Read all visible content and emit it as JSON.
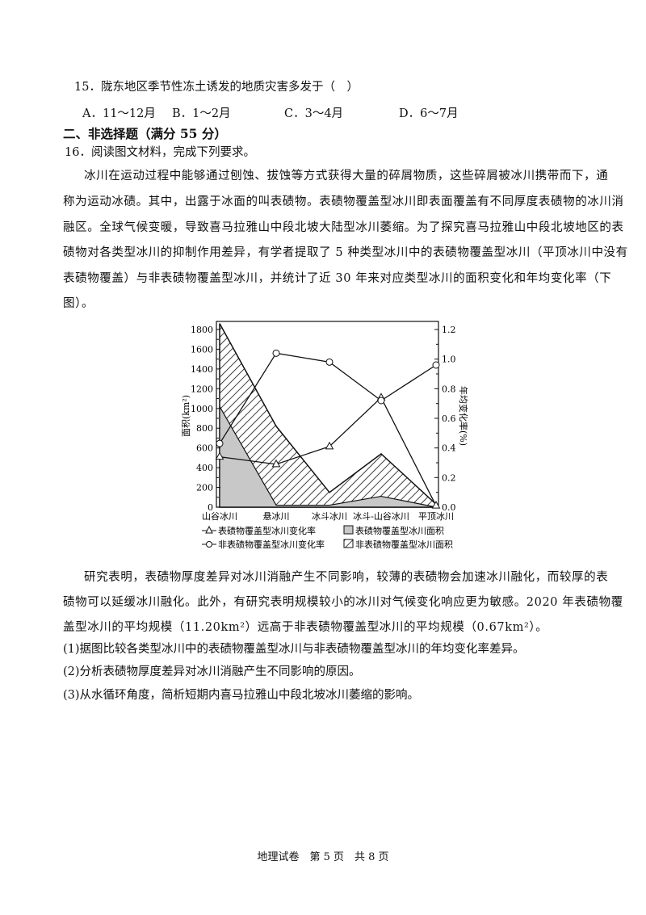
{
  "q15": {
    "stem": "15．陇东地区季节性冻土诱发的地质灾害多发于（　）",
    "options": [
      "A．11～12月",
      "B．1～2月",
      "C．3～4月",
      "D．6～7月"
    ]
  },
  "section2": {
    "title": "二、非选择题（满分 55 分）"
  },
  "q16": {
    "intro": "16．阅读图文材料，完成下列要求。",
    "para1_lines": [
      "冰川在运动过程中能够通过刨蚀、拔蚀等方式获得大量的碎屑物质，这些碎屑被冰川携带而下，通",
      "称为运动冰碛。其中，出露于冰面的叫表碛物。表碛物覆盖型冰川即表面覆盖有不同厚度表碛物的冰川消",
      "融区。全球气候变暖，导致喜马拉雅山中段北坡大陆型冰川萎缩。为了探究喜马拉雅山中段北坡地区的表",
      "碛物对各类型冰川的抑制作用差异，有学者提取了 5 种类型冰川中的表碛物覆盖型冰川（平顶冰川中没有",
      "表碛物覆盖）与非表碛物覆盖型冰川，并统计了近 30 年来对应类型冰川的面积变化和年均变化率（下",
      "图）。"
    ],
    "para2_lines": [
      "研究表明，表碛物厚度差异对冰川消融产生不同影响，较薄的表碛物会加速冰川融化，而较厚的表",
      "碛物可以延缓冰川融化。此外，有研究表明规模较小的冰川对气候变化响应更为敏感。2020 年表碛物覆",
      "盖型冰川的平均规模（11.20km²）远高于非表碛物覆盖型冰川的平均规模（0.67km²）。"
    ],
    "sub_questions": [
      "(1)据图比较各类型冰川中的表碛物覆盖型冰川与非表碛物覆盖型冰川的年均变化率差异。",
      "(2)分析表碛物厚度差异对冰川消融产生不同影响的原因。",
      "(3)从水循环角度，简析短期内喜马拉雅山中段北坡冰川萎缩的影响。"
    ]
  },
  "chart_data": {
    "type": "area+line",
    "categories": [
      "山谷冰川",
      "悬冰川",
      "冰斗冰川",
      "冰斗-山谷冰川",
      "平顶冰川"
    ],
    "ylabel_left": "面积(km²)",
    "ylabel_right": "年均变化率(%)",
    "ylim_left": [
      0,
      1800
    ],
    "yticks_left": [
      "0",
      "200",
      "400",
      "600",
      "800",
      "1000",
      "1200",
      "1400",
      "1600",
      "1800"
    ],
    "ylim_right": [
      0,
      1.2
    ],
    "yticks_right": [
      "0.0",
      "0.2",
      "0.4",
      "0.6",
      "0.8",
      "1.0",
      "1.2"
    ],
    "area_series": [
      {
        "name": "表碛物覆盖型冰川面积",
        "values": [
          1020,
          20,
          20,
          110,
          0
        ],
        "style": "gray-fill"
      },
      {
        "name": "非表碛物覆盖型冰川面积",
        "upper_boundary": [
          1860,
          820,
          150,
          540,
          30
        ],
        "style": "hatched"
      }
    ],
    "line_series": [
      {
        "name": "表碛物覆盖型冰川变化率",
        "marker": "triangle",
        "values": [
          0.34,
          0.29,
          0.41,
          0.74,
          0.01
        ]
      },
      {
        "name": "非表碛物覆盖型冰川变化率",
        "marker": "circle",
        "values": [
          0.43,
          1.04,
          0.98,
          0.72,
          0.96
        ]
      }
    ],
    "legend_placement": "bottom",
    "colors": {
      "gray_fill": "#c8c8c8",
      "line": "#111111"
    }
  },
  "footer": {
    "text": "地理试卷　第 5 页　共 8 页"
  }
}
